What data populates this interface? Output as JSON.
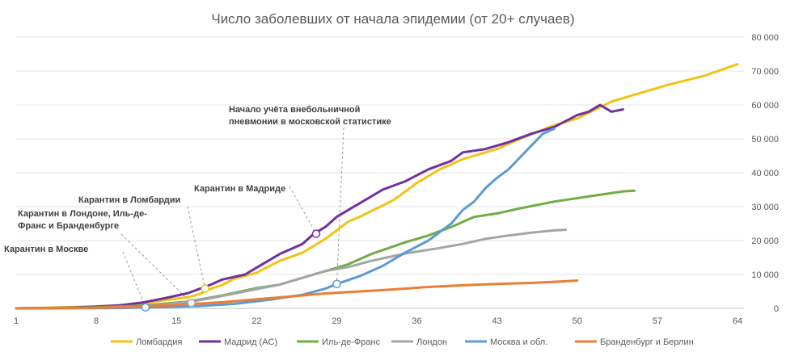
{
  "chart_data": {
    "type": "line",
    "title": "Число заболевших от начала эпидемии (от 20+ случаев)",
    "xlabel": "",
    "ylabel": "",
    "xlim": [
      1,
      64
    ],
    "ylim": [
      0,
      80000
    ],
    "x_ticks": [
      "1",
      "8",
      "15",
      "22",
      "29",
      "36",
      "43",
      "50",
      "57",
      "64"
    ],
    "y_ticks": [
      "0",
      "10 000",
      "20 000",
      "30 000",
      "40 000",
      "50 000",
      "60 000",
      "70 000",
      "80 000"
    ],
    "y_axis_side": "right",
    "grid": "horizontal",
    "legend": "bottom",
    "series": [
      {
        "name": "Ломбардия",
        "color": "#f2c314",
        "points": [
          [
            1,
            0
          ],
          [
            5,
            300
          ],
          [
            8,
            600
          ],
          [
            11,
            1000
          ],
          [
            12,
            1500
          ],
          [
            14,
            2400
          ],
          [
            16,
            3300
          ],
          [
            17,
            4200
          ],
          [
            18,
            5800
          ],
          [
            19,
            6900
          ],
          [
            20,
            8700
          ],
          [
            22,
            10500
          ],
          [
            24,
            14000
          ],
          [
            26,
            16400
          ],
          [
            28,
            20500
          ],
          [
            29,
            23000
          ],
          [
            30,
            25600
          ],
          [
            31,
            27000
          ],
          [
            34,
            32000
          ],
          [
            36,
            37000
          ],
          [
            38,
            41000
          ],
          [
            40,
            44000
          ],
          [
            43,
            47000
          ],
          [
            45,
            50000
          ],
          [
            48,
            54000
          ],
          [
            50,
            56000
          ],
          [
            53,
            61000
          ],
          [
            56,
            64000
          ],
          [
            58,
            66000
          ],
          [
            61,
            68500
          ],
          [
            64,
            72000
          ]
        ]
      },
      {
        "name": "Мадрид (AC)",
        "color": "#7030a0",
        "points": [
          [
            1,
            0
          ],
          [
            5,
            200
          ],
          [
            8,
            500
          ],
          [
            10,
            900
          ],
          [
            12,
            1700
          ],
          [
            14,
            3000
          ],
          [
            16,
            4500
          ],
          [
            18,
            7000
          ],
          [
            19,
            8500
          ],
          [
            21,
            10000
          ],
          [
            22,
            12000
          ],
          [
            24,
            16000
          ],
          [
            26,
            19000
          ],
          [
            27,
            22000
          ],
          [
            28,
            24000
          ],
          [
            29,
            27000
          ],
          [
            31,
            31000
          ],
          [
            33,
            35000
          ],
          [
            35,
            37500
          ],
          [
            37,
            41000
          ],
          [
            39,
            43500
          ],
          [
            40,
            46000
          ],
          [
            42,
            47000
          ],
          [
            44,
            49000
          ],
          [
            46,
            51500
          ],
          [
            48,
            53500
          ],
          [
            50,
            57000
          ],
          [
            51,
            58000
          ],
          [
            52,
            60000
          ],
          [
            53,
            58000
          ],
          [
            54,
            58700
          ]
        ]
      },
      {
        "name": "Иль-де-Франс",
        "color": "#70ad47",
        "points": [
          [
            1,
            0
          ],
          [
            8,
            300
          ],
          [
            12,
            800
          ],
          [
            16,
            2000
          ],
          [
            19,
            3800
          ],
          [
            22,
            6000
          ],
          [
            24,
            7000
          ],
          [
            26,
            9000
          ],
          [
            28,
            11000
          ],
          [
            30,
            13000
          ],
          [
            32,
            16000
          ],
          [
            35,
            19500
          ],
          [
            37,
            21500
          ],
          [
            39,
            24000
          ],
          [
            41,
            27000
          ],
          [
            43,
            28000
          ],
          [
            45,
            29500
          ],
          [
            48,
            31500
          ],
          [
            51,
            33000
          ],
          [
            54,
            34500
          ],
          [
            55,
            34700
          ]
        ]
      },
      {
        "name": "Лондон",
        "color": "#a5a5a5",
        "points": [
          [
            1,
            0
          ],
          [
            8,
            200
          ],
          [
            12,
            500
          ],
          [
            16,
            1800
          ],
          [
            18,
            3000
          ],
          [
            20,
            4300
          ],
          [
            22,
            5700
          ],
          [
            24,
            7000
          ],
          [
            26,
            9000
          ],
          [
            28,
            11000
          ],
          [
            30,
            12200
          ],
          [
            32,
            14000
          ],
          [
            35,
            16200
          ],
          [
            38,
            17800
          ],
          [
            40,
            19000
          ],
          [
            42,
            20500
          ],
          [
            44,
            21500
          ],
          [
            46,
            22300
          ],
          [
            48,
            23000
          ],
          [
            49,
            23200
          ]
        ]
      },
      {
        "name": "Москва и обл.",
        "color": "#5b9bd5",
        "points": [
          [
            1,
            0
          ],
          [
            10,
            100
          ],
          [
            13,
            300
          ],
          [
            17,
            700
          ],
          [
            20,
            1300
          ],
          [
            23,
            2500
          ],
          [
            26,
            4000
          ],
          [
            28,
            5800
          ],
          [
            29,
            7200
          ],
          [
            31,
            9500
          ],
          [
            33,
            12500
          ],
          [
            35,
            16500
          ],
          [
            37,
            20000
          ],
          [
            39,
            25000
          ],
          [
            40,
            29000
          ],
          [
            41,
            31500
          ],
          [
            42,
            35500
          ],
          [
            43,
            38500
          ],
          [
            44,
            41000
          ],
          [
            45,
            44500
          ],
          [
            46,
            48000
          ],
          [
            47,
            51500
          ],
          [
            48,
            53000
          ]
        ]
      },
      {
        "name": "Бранденбург и Берлин",
        "color": "#ed7d31",
        "points": [
          [
            1,
            0
          ],
          [
            8,
            200
          ],
          [
            12,
            500
          ],
          [
            16,
            1200
          ],
          [
            19,
            1800
          ],
          [
            22,
            2700
          ],
          [
            25,
            3500
          ],
          [
            28,
            4400
          ],
          [
            31,
            5000
          ],
          [
            34,
            5600
          ],
          [
            37,
            6300
          ],
          [
            40,
            6800
          ],
          [
            43,
            7200
          ],
          [
            46,
            7500
          ],
          [
            49,
            8000
          ],
          [
            50,
            8200
          ]
        ]
      }
    ],
    "annotations": [
      {
        "lines": [
          "Начало учёта внебольничной",
          "пневмонии в московской статистике"
        ],
        "series": "Москва и обл.",
        "x": 29,
        "y": 7200
      },
      {
        "lines": [
          "Карантин в Мадриде"
        ],
        "series": "Мадрид (AC)",
        "x": 27.2,
        "y": 22000
      },
      {
        "lines": [
          "Карантин в Ломбардии"
        ],
        "series": "Ломбардия",
        "x": 17.5,
        "y": 5800
      },
      {
        "lines": [
          "Карантин в Лондоне, Иль-де-",
          "Франс и Бранденбурге"
        ],
        "series": "Лондон",
        "x": 16.3,
        "y": 1600
      },
      {
        "lines": [
          "Карантин в Москве"
        ],
        "series": "Москва и обл.",
        "x": 12.3,
        "y": 300
      }
    ]
  }
}
